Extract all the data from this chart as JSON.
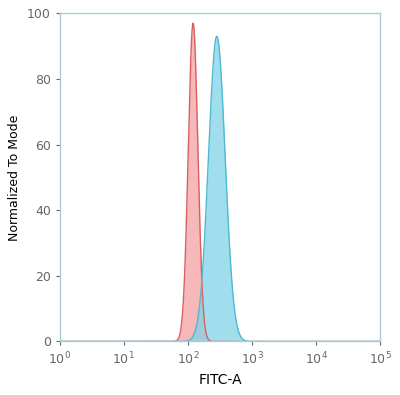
{
  "title": "",
  "xlabel": "FITC-A",
  "ylabel": "Normalized To Mode",
  "xlim_log": [
    0,
    5
  ],
  "ylim": [
    0,
    100
  ],
  "red_peak_log": 2.08,
  "red_sigma_log": 0.075,
  "red_height": 97,
  "blue_peak_log": 2.45,
  "blue_sigma_log": 0.13,
  "blue_height": 93,
  "red_fill_color": "#F4A0A0",
  "red_line_color": "#D96060",
  "blue_fill_color": "#82D4E8",
  "blue_line_color": "#50B8D0",
  "fill_alpha": 0.75,
  "line_alpha": 1.0,
  "line_width": 1.0,
  "background_color": "#FFFFFF",
  "spine_color": "#AACCD8",
  "yticks": [
    0,
    20,
    40,
    60,
    80,
    100
  ],
  "xtick_positions": [
    0,
    1,
    2,
    3,
    4,
    5
  ]
}
